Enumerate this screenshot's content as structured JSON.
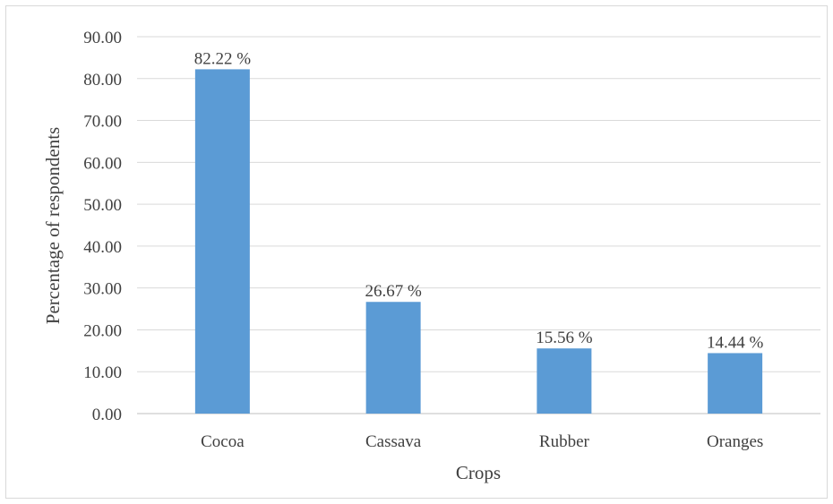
{
  "chart_data": {
    "type": "bar",
    "categories": [
      "Cocoa",
      "Cassava",
      "Rubber",
      "Oranges"
    ],
    "values": [
      82.22,
      26.67,
      15.56,
      14.44
    ],
    "data_labels": [
      "82.22 %",
      "26.67 %",
      "15.56 %",
      "14.44 %"
    ],
    "title": "",
    "xlabel": "Crops",
    "ylabel": "Percentage  of respondents",
    "ylim": [
      0,
      90
    ],
    "yticks": [
      "0.00",
      "10.00",
      "20.00",
      "30.00",
      "40.00",
      "50.00",
      "60.00",
      "70.00",
      "80.00",
      "90.00"
    ],
    "grid": true,
    "legend": "none",
    "bar_color": "#5b9bd5"
  }
}
